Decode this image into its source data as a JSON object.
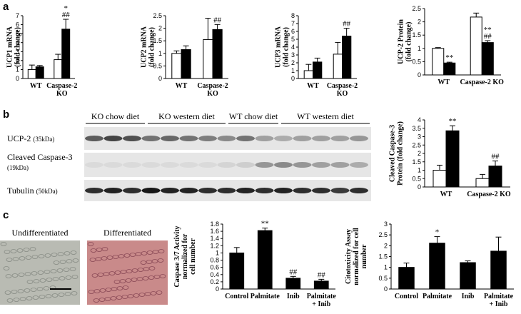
{
  "panels": {
    "letters": [
      "a",
      "b",
      "c"
    ],
    "blot_groups": [
      "KO chow diet",
      "KO western diet",
      "WT chow diet",
      "WT western diet"
    ],
    "blot_rows": [
      {
        "name": "UCP-2",
        "size": "(35kDa)"
      },
      {
        "name": "Cleaved Caspase-3",
        "size": "(19kDa)"
      },
      {
        "name": "Tubulin",
        "size": "(50kDa)"
      }
    ],
    "micrographs": [
      "Undifferentiated",
      "Differentiated"
    ]
  },
  "chart_data": [
    {
      "type": "bar",
      "y_label": "UCP1 mRNA\n(fold change)",
      "categories": [
        "WT",
        "Caspase-2\nKO"
      ],
      "series": [
        {
          "color": "#ffffff",
          "values": [
            1.0,
            2.1
          ],
          "errors": [
            0.5,
            0.6
          ],
          "annotations": [
            null,
            null
          ]
        },
        {
          "color": "#000000",
          "values": [
            1.3,
            5.5
          ],
          "errors": [
            0.15,
            1.1
          ],
          "annotations": [
            null,
            [
              "*",
              "##"
            ]
          ]
        }
      ],
      "ylim": [
        0,
        7
      ],
      "yticks": [
        0,
        1,
        2,
        3,
        4,
        5,
        6,
        7
      ]
    },
    {
      "type": "bar",
      "y_label": "UCP2 mRNA\n(fold change)",
      "categories": [
        "WT",
        "Caspase-2\nKO"
      ],
      "series": [
        {
          "color": "#ffffff",
          "values": [
            1.0,
            1.55
          ],
          "errors": [
            0.1,
            0.85
          ],
          "annotations": [
            null,
            null
          ]
        },
        {
          "color": "#000000",
          "values": [
            1.15,
            1.95
          ],
          "errors": [
            0.15,
            0.2
          ],
          "annotations": [
            null,
            [
              "##"
            ]
          ]
        }
      ],
      "ylim": [
        0,
        2.5
      ],
      "yticks": [
        0,
        0.5,
        1,
        1.5,
        2,
        2.5
      ]
    },
    {
      "type": "bar",
      "y_label": "UCP3 mRNA\n(fold change)",
      "categories": [
        "WT",
        "Caspase-2\nKO"
      ],
      "series": [
        {
          "color": "#ffffff",
          "values": [
            1.0,
            3.1
          ],
          "errors": [
            0.8,
            1.5
          ],
          "annotations": [
            null,
            null
          ]
        },
        {
          "color": "#000000",
          "values": [
            2.1,
            5.4
          ],
          "errors": [
            0.5,
            1.0
          ],
          "annotations": [
            null,
            [
              "##"
            ]
          ]
        }
      ],
      "ylim": [
        0,
        8
      ],
      "yticks": [
        0,
        1,
        2,
        3,
        4,
        5,
        6,
        7,
        8
      ]
    },
    {
      "type": "bar",
      "y_label": "UCP-2 Protein\n(fold change)",
      "categories": [
        "WT",
        "Caspase-2 KO"
      ],
      "series": [
        {
          "color": "#ffffff",
          "values": [
            1.0,
            2.18
          ],
          "errors": [
            0.03,
            0.15
          ],
          "annotations": [
            null,
            null
          ]
        },
        {
          "color": "#000000",
          "values": [
            0.45,
            1.22
          ],
          "errors": [
            0.03,
            0.07
          ],
          "annotations": [
            [
              "**"
            ],
            [
              "**",
              "##"
            ]
          ]
        }
      ],
      "ylim": [
        0,
        2.5
      ],
      "yticks": [
        0,
        0.5,
        1,
        1.5,
        2,
        2.5
      ]
    },
    {
      "type": "bar",
      "y_label": "Cleaved Caspase-3\nProtein (fold change)",
      "categories": [
        "WT",
        "Caspase-2 KO"
      ],
      "series": [
        {
          "color": "#ffffff",
          "values": [
            1.0,
            0.5
          ],
          "errors": [
            0.3,
            0.25
          ],
          "annotations": [
            null,
            null
          ]
        },
        {
          "color": "#000000",
          "values": [
            3.35,
            1.25
          ],
          "errors": [
            0.3,
            0.3
          ],
          "annotations": [
            [
              "**"
            ],
            [
              "##"
            ]
          ]
        }
      ],
      "ylim": [
        0,
        4
      ],
      "yticks": [
        0,
        0.5,
        1,
        1.5,
        2,
        2.5,
        3,
        3.5,
        4
      ]
    },
    {
      "type": "bar",
      "y_label": "Caspase 3/7 Activity\nnormalized for\ncell number",
      "categories": [
        "Control",
        "Palmitate",
        "Inib",
        "Palmitate\n+ Inib"
      ],
      "series": [
        {
          "color": "#000000",
          "values": [
            1.0,
            1.62,
            0.3,
            0.22
          ],
          "errors": [
            0.15,
            0.07,
            0.05,
            0.05
          ],
          "annotations": [
            null,
            [
              "**"
            ],
            [
              "##"
            ],
            [
              "##"
            ]
          ]
        }
      ],
      "ylim": [
        0,
        1.8
      ],
      "yticks": [
        0,
        0.2,
        0.4,
        0.6,
        0.8,
        1,
        1.2,
        1.4,
        1.6,
        1.8
      ]
    },
    {
      "type": "bar",
      "y_label": "Citotoxicity Assay\nnormalized for cell\nnumber",
      "categories": [
        "Control",
        "Palmitate",
        "Inib",
        "Palmitate\n+ Inib"
      ],
      "series": [
        {
          "color": "#000000",
          "values": [
            1.0,
            2.12,
            1.22,
            1.75
          ],
          "errors": [
            0.2,
            0.3,
            0.08,
            0.65
          ],
          "annotations": [
            null,
            [
              "*"
            ],
            null,
            null
          ]
        }
      ],
      "ylim": [
        0,
        3
      ],
      "yticks": [
        0,
        0.5,
        1,
        1.5,
        2,
        2.5,
        3
      ]
    }
  ]
}
